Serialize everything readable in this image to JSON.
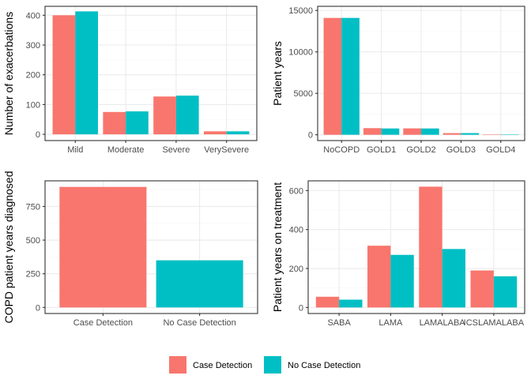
{
  "colors": {
    "case_detection": "#F8766D",
    "no_case_detection": "#00BFC4",
    "grid_major": "#EBEBEB",
    "grid_minor": "#F5F5F5",
    "panel_border": "#333333"
  },
  "legend": {
    "position": "bottom",
    "items": [
      {
        "label": "Case Detection",
        "color": "#F8766D"
      },
      {
        "label": "No Case Detection",
        "color": "#00BFC4"
      }
    ]
  },
  "chart_data": [
    {
      "type": "bar",
      "id": "exacerbations",
      "title": "",
      "xlabel": "",
      "ylabel": "Number of exacerbations",
      "categories": [
        "Mild",
        "Moderate",
        "Severe",
        "VerySevere"
      ],
      "series": [
        {
          "name": "Case Detection",
          "color": "#F8766D",
          "values": [
            400,
            75,
            127,
            10
          ]
        },
        {
          "name": "No Case Detection",
          "color": "#00BFC4",
          "values": [
            413,
            77,
            130,
            10
          ]
        }
      ],
      "ylim": [
        -21,
        430
      ],
      "yticks": [
        0,
        100,
        200,
        300,
        400
      ],
      "ytick_labels": [
        "0",
        "100",
        "200",
        "300",
        "400"
      ],
      "grid": true
    },
    {
      "type": "bar",
      "id": "patient-years",
      "title": "",
      "xlabel": "",
      "ylabel": "Patient years",
      "categories": [
        "NoCOPD",
        "GOLD1",
        "GOLD2",
        "GOLD3",
        "GOLD4"
      ],
      "series": [
        {
          "name": "Case Detection",
          "color": "#F8766D",
          "values": [
            14100,
            800,
            770,
            200,
            20
          ]
        },
        {
          "name": "No Case Detection",
          "color": "#00BFC4",
          "values": [
            14100,
            760,
            760,
            200,
            20
          ]
        }
      ],
      "ylim": [
        -700,
        15500
      ],
      "yticks": [
        0,
        5000,
        10000,
        15000
      ],
      "ytick_labels": [
        "0",
        "5000",
        "10000",
        "15000"
      ],
      "grid": true
    },
    {
      "type": "bar",
      "id": "copd-diagnosed",
      "title": "",
      "xlabel": "",
      "ylabel": "COPD patient years diagnosed",
      "categories": [
        "Case Detection",
        "No Case Detection"
      ],
      "series": [
        {
          "name": "Case Detection",
          "color": "#F8766D",
          "values": [
            895,
            null
          ]
        },
        {
          "name": "No Case Detection",
          "color": "#00BFC4",
          "values": [
            null,
            350
          ]
        }
      ],
      "ylim": [
        -45,
        940
      ],
      "yticks": [
        0,
        250,
        500,
        750
      ],
      "ytick_labels": [
        "0",
        "250",
        "500",
        "750"
      ],
      "grid": true
    },
    {
      "type": "bar",
      "id": "treatment",
      "title": "",
      "xlabel": "",
      "ylabel": "Patient years on treatment",
      "categories": [
        "SABA",
        "LAMA",
        "LAMALABA",
        "ICSLAMALABA"
      ],
      "series": [
        {
          "name": "Case Detection",
          "color": "#F8766D",
          "values": [
            55,
            317,
            620,
            190
          ]
        },
        {
          "name": "No Case Detection",
          "color": "#00BFC4",
          "values": [
            40,
            270,
            300,
            160
          ]
        }
      ],
      "ylim": [
        -31,
        650
      ],
      "yticks": [
        0,
        200,
        400,
        600
      ],
      "ytick_labels": [
        "0",
        "200",
        "400",
        "600"
      ],
      "grid": true
    }
  ]
}
